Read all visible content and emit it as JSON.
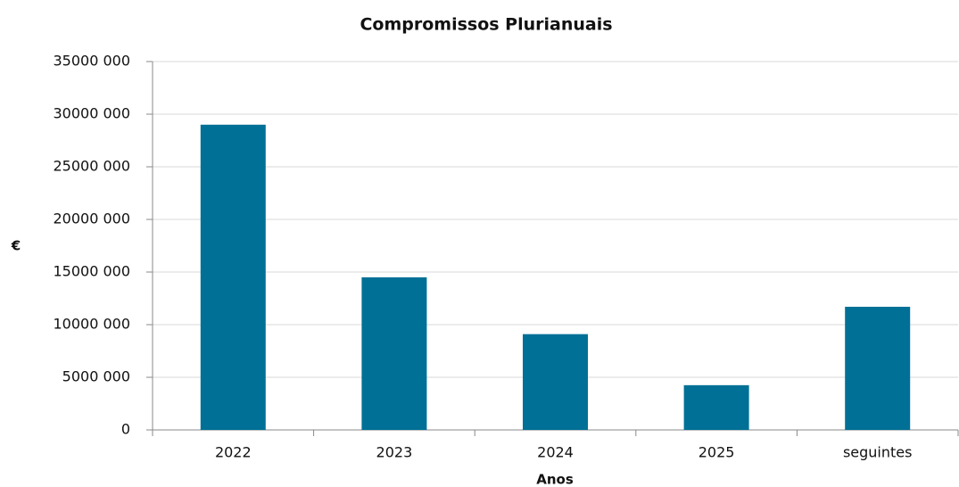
{
  "chart_data": {
    "type": "bar",
    "title": "Compromissos Plurianuais",
    "x_label": "Anos",
    "y_label": "€",
    "categories": [
      "2022",
      "2023",
      "2024",
      "2025",
      "seguintes"
    ],
    "values": [
      29000000,
      14500000,
      9100000,
      4250000,
      11700000
    ],
    "color": "#007096",
    "ylim": [
      0,
      35000000
    ],
    "yticks": [
      0,
      {
        "value": 5000000,
        "label": "5000 000"
      },
      {
        "value": 10000000,
        "label": "10000 000"
      },
      {
        "value": 15000000,
        "label": "15000 000"
      },
      {
        "value": 20000000,
        "label": "20000 000"
      },
      {
        "value": 25000000,
        "label": "25000 000"
      },
      {
        "value": 30000000,
        "label": "30000 000"
      },
      {
        "value": 35000000,
        "label": "35000 000"
      }
    ],
    "grid": true
  }
}
